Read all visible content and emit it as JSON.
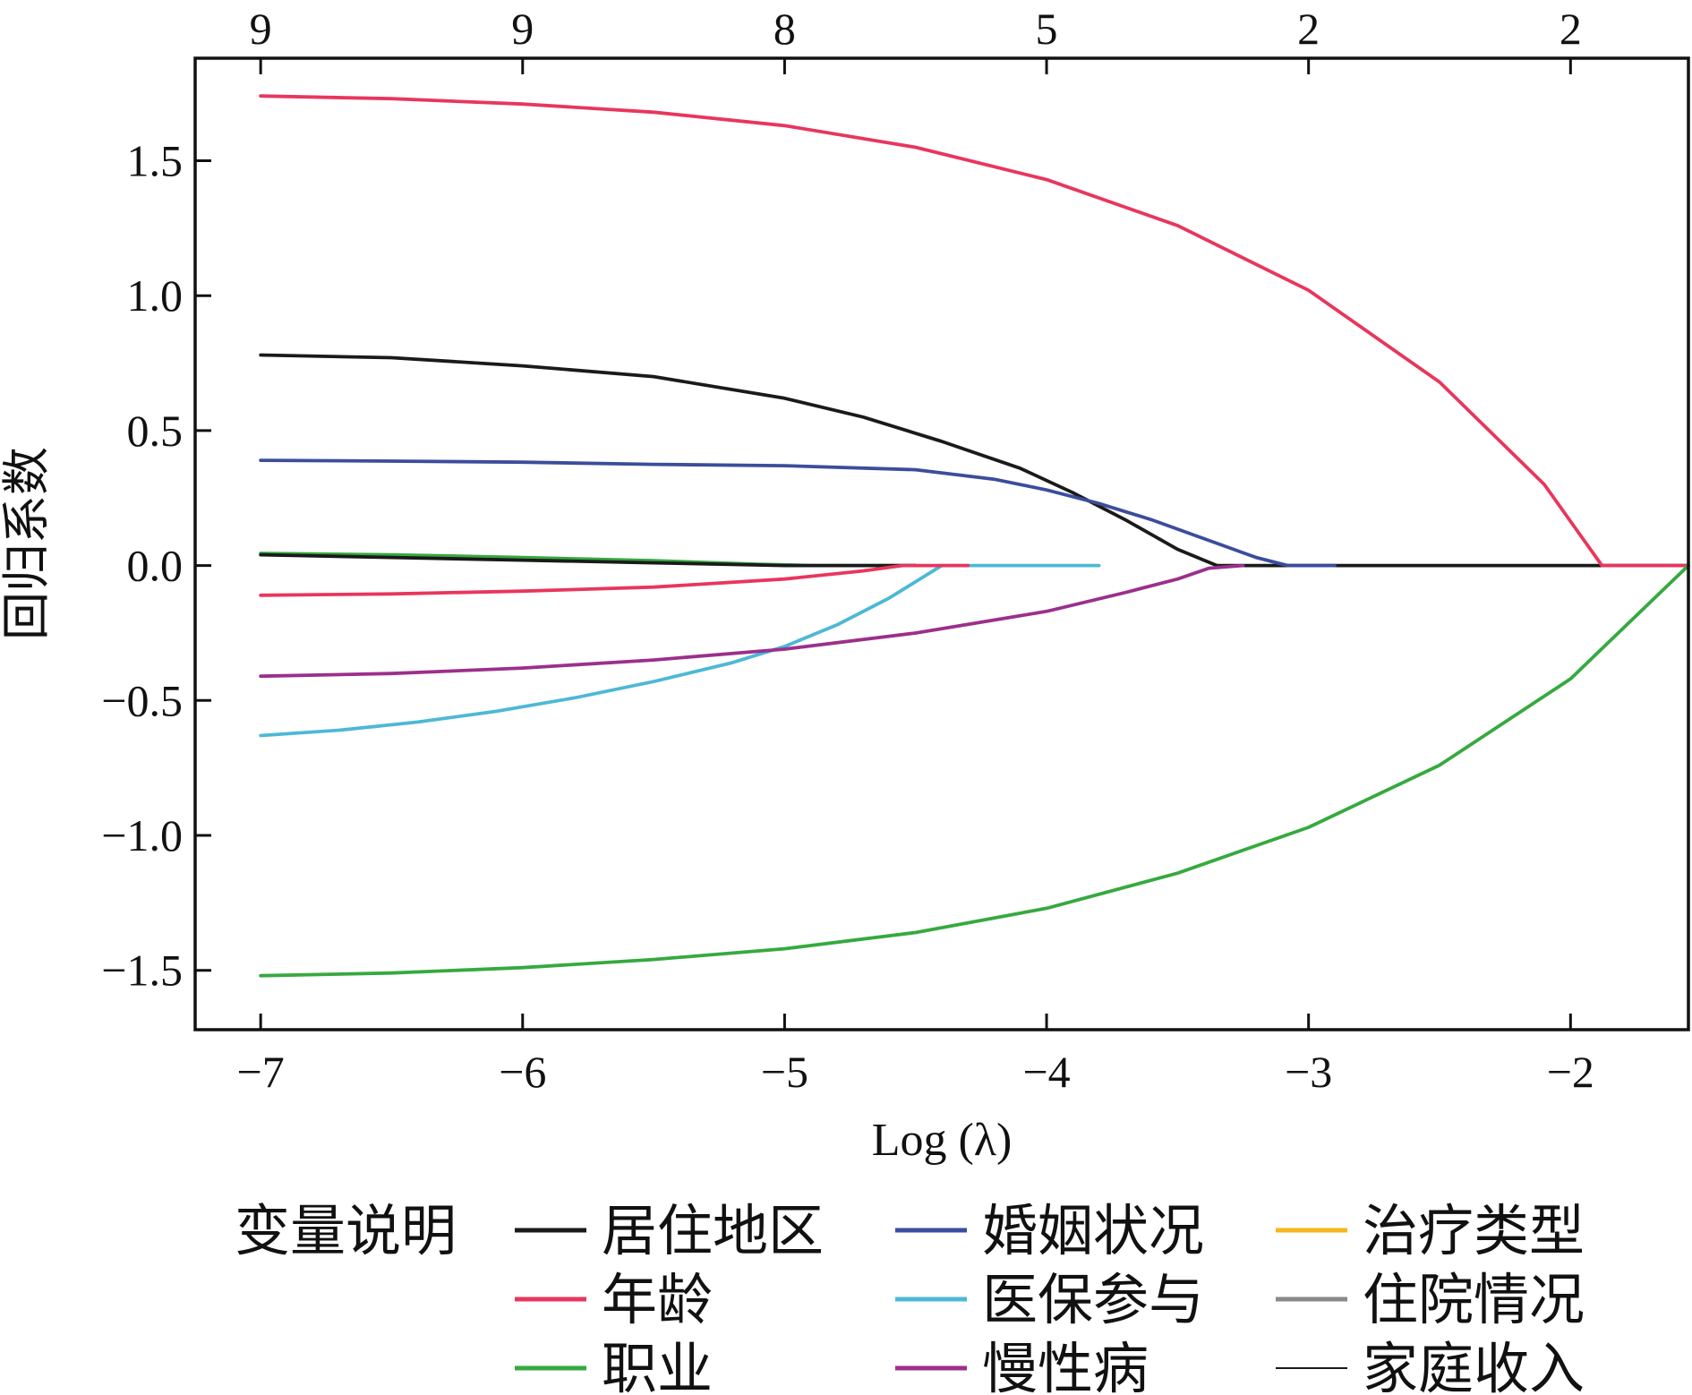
{
  "chart_data": {
    "type": "line",
    "title": "",
    "xlabel": "Log (λ)",
    "ylabel": "回归系数",
    "xlim": [
      -7.25,
      -1.55
    ],
    "ylim": [
      -1.72,
      1.88
    ],
    "x_ticks": [
      -7,
      -6,
      -5,
      -4,
      -3,
      -2
    ],
    "x_tick_labels": [
      "−7",
      "−6",
      "−5",
      "−4",
      "−3",
      "−2"
    ],
    "y_ticks": [
      1.5,
      1.0,
      0.5,
      0.0,
      -0.5,
      -1.0,
      -1.5
    ],
    "y_tick_labels": [
      "1.5",
      "1.0",
      "0.5",
      "0.0",
      "−0.5",
      "−1.0",
      "−1.5"
    ],
    "top_axis": {
      "positions": [
        -7,
        -6,
        -5,
        -4,
        -3,
        -2
      ],
      "labels": [
        "9",
        "9",
        "8",
        "5",
        "2",
        "2"
      ]
    },
    "grid": false,
    "legend": {
      "title": "变量说明",
      "placement": "bottom",
      "columns": 3
    },
    "series": [
      {
        "name": "居住地区",
        "color": "#1a1a1a",
        "x": [
          -7,
          -6.5,
          -6,
          -5.5,
          -5,
          -4.7,
          -4.4,
          -4.1,
          -3.9,
          -3.7,
          -3.5,
          -3.35,
          -3.3,
          -2.5,
          -1.55
        ],
        "y": [
          0.78,
          0.77,
          0.74,
          0.7,
          0.62,
          0.55,
          0.46,
          0.36,
          0.27,
          0.17,
          0.06,
          0.0,
          0.0,
          0.0,
          0.0
        ]
      },
      {
        "name": "年龄",
        "color": "#e8365d",
        "x": [
          -7,
          -6.5,
          -6,
          -5.5,
          -5,
          -4.5,
          -4.0,
          -3.5,
          -3.0,
          -2.5,
          -2.1,
          -1.88,
          -1.55
        ],
        "y": [
          1.74,
          1.73,
          1.71,
          1.68,
          1.63,
          1.55,
          1.43,
          1.26,
          1.02,
          0.68,
          0.3,
          0.0,
          0.0
        ]
      },
      {
        "name": "职业",
        "color": "#36a93f",
        "x": [
          -7,
          -6.5,
          -6,
          -5.5,
          -5,
          -4.5,
          -4.0,
          -3.5,
          -3.0,
          -2.5,
          -2.0,
          -1.55
        ],
        "y": [
          -1.52,
          -1.51,
          -1.49,
          -1.46,
          -1.42,
          -1.36,
          -1.27,
          -1.14,
          -0.97,
          -0.74,
          -0.42,
          0.0
        ]
      },
      {
        "name": "职业",
        "color": "#36a93f",
        "x": [
          -7,
          -6.5,
          -6,
          -5.5,
          -5.1,
          -4.9,
          -4.5
        ],
        "y": [
          0.045,
          0.04,
          0.03,
          0.018,
          0.005,
          0.0,
          0.0
        ]
      },
      {
        "name": "婚姻状况",
        "color": "#3b4d9c",
        "x": [
          -7,
          -6.5,
          -6,
          -5.5,
          -5,
          -4.5,
          -4.2,
          -4.0,
          -3.8,
          -3.6,
          -3.4,
          -3.2,
          -3.08,
          -2.9
        ],
        "y": [
          0.39,
          0.387,
          0.383,
          0.375,
          0.37,
          0.355,
          0.32,
          0.28,
          0.23,
          0.17,
          0.1,
          0.03,
          0.0,
          0.0
        ]
      },
      {
        "name": "医保参与",
        "color": "#4db8d6",
        "x": [
          -7,
          -6.7,
          -6.4,
          -6.1,
          -5.8,
          -5.5,
          -5.2,
          -5.0,
          -4.8,
          -4.6,
          -4.4,
          -4.2,
          -3.8
        ],
        "y": [
          -0.63,
          -0.61,
          -0.58,
          -0.54,
          -0.49,
          -0.43,
          -0.36,
          -0.3,
          -0.22,
          -0.12,
          0.0,
          0.0,
          0.0
        ]
      },
      {
        "name": "慢性病",
        "color": "#9c2f8c",
        "x": [
          -7,
          -6.5,
          -6,
          -5.5,
          -5,
          -4.5,
          -4.0,
          -3.7,
          -3.5,
          -3.38,
          -3.25
        ],
        "y": [
          -0.41,
          -0.4,
          -0.38,
          -0.35,
          -0.31,
          -0.25,
          -0.17,
          -0.1,
          -0.05,
          -0.01,
          0.0
        ]
      },
      {
        "name": "家庭收入",
        "color": "#1a1a1a",
        "x": [
          -7,
          -6.5,
          -6,
          -5.5,
          -5,
          -4.5
        ],
        "y": [
          0.04,
          0.03,
          0.02,
          0.01,
          0.0,
          0.0
        ]
      },
      {
        "name": "年龄",
        "color": "#e8365d",
        "x": [
          -7,
          -6.5,
          -6,
          -5.5,
          -5,
          -4.7,
          -4.55,
          -4.3
        ],
        "y": [
          -0.11,
          -0.105,
          -0.095,
          -0.08,
          -0.05,
          -0.02,
          0.0,
          0.0
        ]
      }
    ],
    "legend_entries": [
      {
        "label": "居住地区",
        "color": "#1a1a1a",
        "width": 5
      },
      {
        "label": "年龄",
        "color": "#e8365d",
        "width": 5
      },
      {
        "label": "职业",
        "color": "#36a93f",
        "width": 5
      },
      {
        "label": "婚姻状况",
        "color": "#3b4d9c",
        "width": 5
      },
      {
        "label": "医保参与",
        "color": "#4db8d6",
        "width": 5
      },
      {
        "label": "慢性病",
        "color": "#9c2f8c",
        "width": 5
      },
      {
        "label": "治疗类型",
        "color": "#f5b81c",
        "width": 5
      },
      {
        "label": "住院情况",
        "color": "#8a8a8a",
        "width": 5
      },
      {
        "label": "家庭收入",
        "color": "#1a1a1a",
        "width": 2
      }
    ]
  }
}
